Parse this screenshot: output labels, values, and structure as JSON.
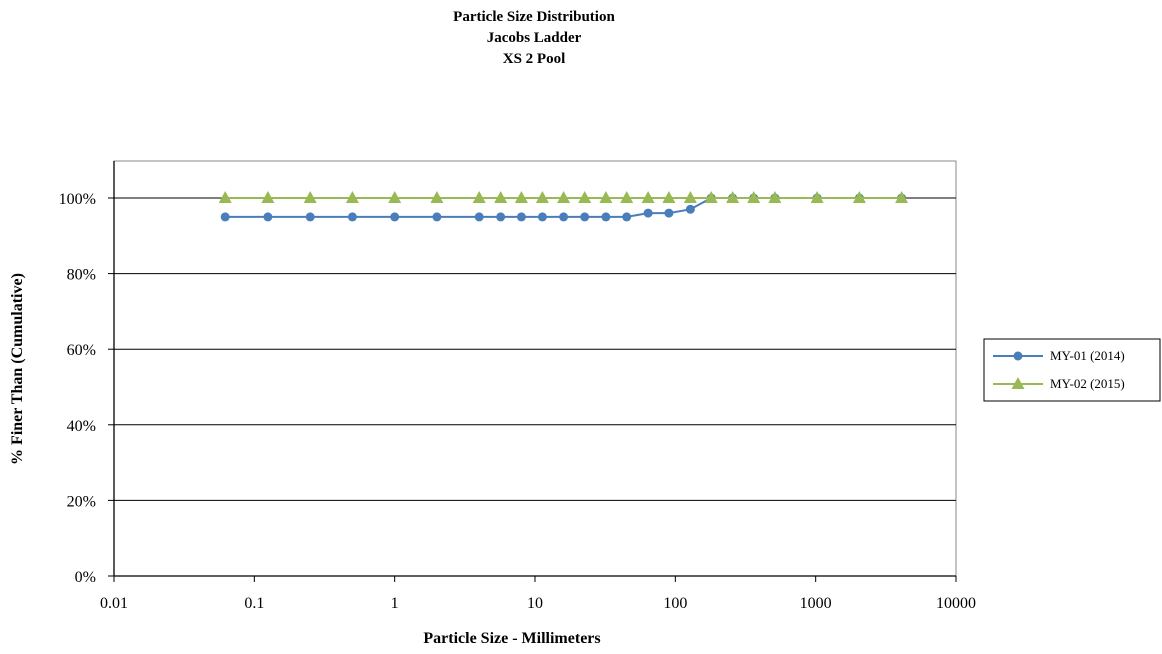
{
  "chart_data": {
    "type": "line",
    "title": [
      "Particle Size Distribution",
      "Jacobs Ladder",
      "XS 2 Pool"
    ],
    "xlabel": "Particle Size - Millimeters",
    "ylabel": "% Finer Than (Cumulative)",
    "x_scale": "log",
    "xlim": [
      0.01,
      10000
    ],
    "ylim": [
      0,
      100
    ],
    "x_ticks": [
      "0.01",
      "0.1",
      "1",
      "10",
      "100",
      "1000",
      "10000"
    ],
    "y_ticks": [
      "0%",
      "20%",
      "40%",
      "60%",
      "80%",
      "100%"
    ],
    "grid": "horizontal",
    "legend_position": "right",
    "x": [
      0.062,
      0.125,
      0.25,
      0.5,
      1,
      2,
      4,
      5.7,
      8,
      11.3,
      16,
      22.6,
      32,
      45,
      64,
      90,
      128,
      180,
      256,
      362,
      512,
      1024,
      2048,
      4096
    ],
    "series": [
      {
        "name": "MY-01 (2014)",
        "color": "#4a7ebb",
        "marker": "circle",
        "values": [
          95,
          95,
          95,
          95,
          95,
          95,
          95,
          95,
          95,
          95,
          95,
          95,
          95,
          95,
          96,
          96,
          97,
          100,
          100,
          100,
          100,
          100,
          100,
          100
        ]
      },
      {
        "name": "MY-02 (2015)",
        "color": "#98b954",
        "marker": "triangle",
        "values": [
          100,
          100,
          100,
          100,
          100,
          100,
          100,
          100,
          100,
          100,
          100,
          100,
          100,
          100,
          100,
          100,
          100,
          100,
          100,
          100,
          100,
          100,
          100,
          100
        ]
      }
    ]
  }
}
